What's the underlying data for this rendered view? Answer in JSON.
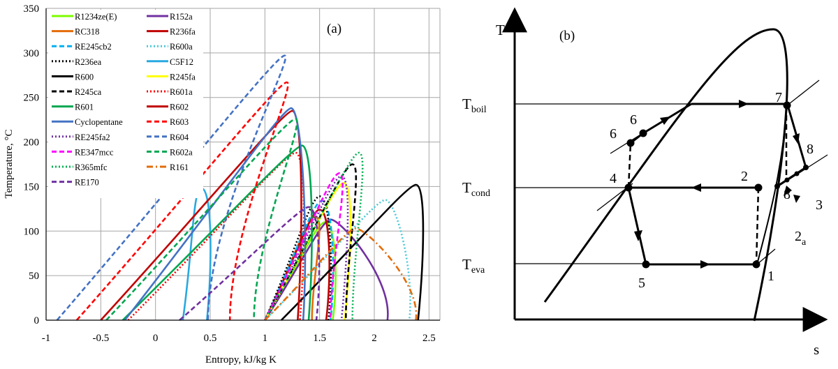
{
  "chart_data": [
    {
      "type": "line",
      "panel_label": "(a)",
      "xlabel": "Entropy, kJ/kg K",
      "ylabel": "Temperature, °C",
      "xlim": [
        -1,
        2.6
      ],
      "ylim": [
        0,
        350
      ],
      "xticks": [
        -1,
        -0.5,
        0,
        0.5,
        1,
        1.5,
        2,
        2.5
      ],
      "yticks": [
        0,
        50,
        100,
        150,
        200,
        250,
        300,
        350
      ],
      "grid": true,
      "legend_position": "top-left",
      "series": [
        {
          "name": "R1234ze(E)",
          "color": "#7cfc00",
          "dash": "solid",
          "peak": [
            1.55,
            110
          ],
          "s_liq0": 1.0,
          "s_vap0": 1.62
        },
        {
          "name": "R152a",
          "color": "#7030a0",
          "dash": "solid",
          "peak": [
            1.6,
            113
          ],
          "s_liq0": 1.0,
          "s_vap0": 2.12
        },
        {
          "name": "RC318",
          "color": "#e36c09",
          "dash": "solid",
          "peak": [
            1.46,
            116
          ],
          "s_liq0": 1.0,
          "s_vap0": 1.43
        },
        {
          "name": "R236fa",
          "color": "#c00000",
          "dash": "solid",
          "peak": [
            1.5,
            124
          ],
          "s_liq0": 1.0,
          "s_vap0": 1.56
        },
        {
          "name": "RE245cb2",
          "color": "#00b0f0",
          "dash": "dashed",
          "peak": [
            1.52,
            134
          ],
          "s_liq0": 1.0,
          "s_vap0": 1.6
        },
        {
          "name": "R600a",
          "color": "#4bc8d8",
          "dash": "dotted",
          "peak": [
            2.1,
            135
          ],
          "s_liq0": 1.0,
          "s_vap0": 2.32
        },
        {
          "name": "R236ea",
          "color": "#000000",
          "dash": "dotted",
          "peak": [
            1.5,
            139
          ],
          "s_liq0": 1.0,
          "s_vap0": 1.58
        },
        {
          "name": "C5F12",
          "color": "#29a8e0",
          "dash": "solid",
          "peak": [
            0.42,
            148
          ],
          "s_liq0": 0.25,
          "s_vap0": 0.47
        },
        {
          "name": "R600",
          "color": "#000000",
          "dash": "solid",
          "peak": [
            2.38,
            152
          ],
          "s_liq0": 1.15,
          "s_vap0": 2.4
        },
        {
          "name": "R245fa",
          "color": "#ffff00",
          "dash": "solid",
          "peak": [
            1.72,
            154
          ],
          "s_liq0": 1.0,
          "s_vap0": 1.73
        },
        {
          "name": "R245ca",
          "color": "#000000",
          "dash": "dashed",
          "peak": [
            1.8,
            175
          ],
          "s_liq0": 1.0,
          "s_vap0": 1.74
        },
        {
          "name": "R601a",
          "color": "#ff0000",
          "dash": "dotted",
          "peak": [
            1.28,
            188
          ],
          "s_liq0": -0.25,
          "s_vap0": 1.32
        },
        {
          "name": "R601",
          "color": "#00a651",
          "dash": "solid",
          "peak": [
            1.34,
            196
          ],
          "s_liq0": -0.3,
          "s_vap0": 1.4
        },
        {
          "name": "R602",
          "color": "#c00000",
          "dash": "solid",
          "peak": [
            1.25,
            235
          ],
          "s_liq0": -0.5,
          "s_vap0": 1.3
        },
        {
          "name": "Cyclopentane",
          "color": "#4472c4",
          "dash": "solid",
          "peak": [
            1.24,
            238
          ],
          "s_liq0": -0.28,
          "s_vap0": 1.35
        },
        {
          "name": "R603",
          "color": "#ff0000",
          "dash": "dashed",
          "peak": [
            1.2,
            267
          ],
          "s_liq0": -0.72,
          "s_vap0": 0.68
        },
        {
          "name": "RE245fa2",
          "color": "#7030a0",
          "dash": "dotted",
          "peak": [
            1.7,
            162
          ],
          "s_liq0": 1.0,
          "s_vap0": 1.7
        },
        {
          "name": "R604",
          "color": "#4472c4",
          "dash": "dashed",
          "peak": [
            1.18,
            297
          ],
          "s_liq0": -0.9,
          "s_vap0": 0.48
        },
        {
          "name": "RE347mcc",
          "color": "#ff00ff",
          "dash": "dashed",
          "peak": [
            1.68,
            165
          ],
          "s_liq0": 1.0,
          "s_vap0": 1.6
        },
        {
          "name": "R602a",
          "color": "#00a651",
          "dash": "dashed",
          "peak": [
            1.28,
            226
          ],
          "s_liq0": -0.45,
          "s_vap0": 0.9
        },
        {
          "name": "R365mfc",
          "color": "#00b050",
          "dash": "dotted",
          "peak": [
            1.86,
            188
          ],
          "s_liq0": 1.0,
          "s_vap0": 1.8
        },
        {
          "name": "R161",
          "color": "#e36c09",
          "dash": "dashdot",
          "peak": [
            1.83,
            103
          ],
          "s_liq0": 1.0,
          "s_vap0": 2.38
        },
        {
          "name": "RE170",
          "color": "#7030a0",
          "dash": "dashed",
          "peak": [
            1.4,
            127
          ],
          "s_liq0": 0.22,
          "s_vap0": 1.47
        }
      ]
    },
    {
      "type": "diagram",
      "panel_label": "(b)",
      "ylabel": "T",
      "xlabel": "s",
      "levels": [
        {
          "name": "boil",
          "label": "T",
          "sub": "boil"
        },
        {
          "name": "cond",
          "label": "T",
          "sub": "cond"
        },
        {
          "name": "eva",
          "label": "T",
          "sub": "eva"
        }
      ],
      "points": [
        "1",
        "2",
        "2",
        "3",
        "4",
        "5",
        "6",
        "6",
        "7",
        "8",
        "8"
      ],
      "point_sub": "a"
    }
  ]
}
